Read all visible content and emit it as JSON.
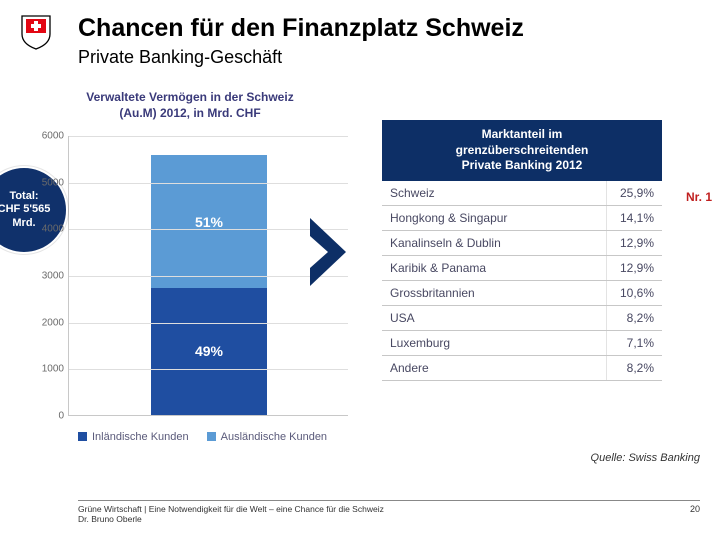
{
  "header": {
    "title": "Chancen für den Finanzplatz Schweiz",
    "subtitle": "Private Banking-Geschäft",
    "logo_bg": "#ffffff",
    "logo_shield": "#e30613",
    "logo_stroke": "#000000"
  },
  "chart": {
    "type": "stacked-bar",
    "title_line1": "Verwaltete Vermögen in der Schweiz",
    "title_line2": "(Au.M) 2012, in Mrd. CHF",
    "ylim": [
      0,
      6000
    ],
    "ytick_step": 1000,
    "yticks": [
      "0",
      "1000",
      "2000",
      "3000",
      "4000",
      "5000",
      "6000"
    ],
    "grid_color": "#dedede",
    "axis_color": "#c8c8c8",
    "total_value": 5565,
    "segments": [
      {
        "name": "Inländische Kunden",
        "pct": "49%",
        "value": 2727,
        "color": "#1f4ea1"
      },
      {
        "name": "Ausländische Kunden",
        "pct": "51%",
        "value": 2838,
        "color": "#5b9bd5"
      }
    ],
    "callout": {
      "line1": "Total:",
      "line2": "CHF 5'565",
      "line3": "Mrd.",
      "bg": "#10316b",
      "text": "#ffffff"
    },
    "legend": [
      {
        "label": "Inländische Kunden",
        "color": "#1f4ea1"
      },
      {
        "label": "Ausländische Kunden",
        "color": "#5b9bd5"
      }
    ],
    "chevron_color": "#0d2f66"
  },
  "table": {
    "header_line1": "Marktanteil im",
    "header_line2": "grenzüberschreitenden",
    "header_line3": "Private Banking 2012",
    "header_bg": "#0d2f66",
    "header_text": "#ffffff",
    "rows": [
      {
        "name": "Schweiz",
        "value": "25,9%"
      },
      {
        "name": "Hongkong & Singapur",
        "value": "14,1%"
      },
      {
        "name": "Kanalinseln & Dublin",
        "value": "12,9%"
      },
      {
        "name": "Karibik & Panama",
        "value": "12,9%"
      },
      {
        "name": "Grossbritannien",
        "value": "10,6%"
      },
      {
        "name": "USA",
        "value": "8,2%"
      },
      {
        "name": "Luxemburg",
        "value": "7,1%"
      },
      {
        "name": "Andere",
        "value": "8,2%"
      }
    ],
    "nr1_label": "Nr. 1",
    "nr1_color": "#c02020"
  },
  "source": {
    "label": "Quelle: Swiss Banking"
  },
  "footer": {
    "line1": "Grüne Wirtschaft | Eine Notwendigkeit für die Welt – eine Chance für die Schweiz",
    "line2": "Dr. Bruno Oberle",
    "page": "20"
  }
}
